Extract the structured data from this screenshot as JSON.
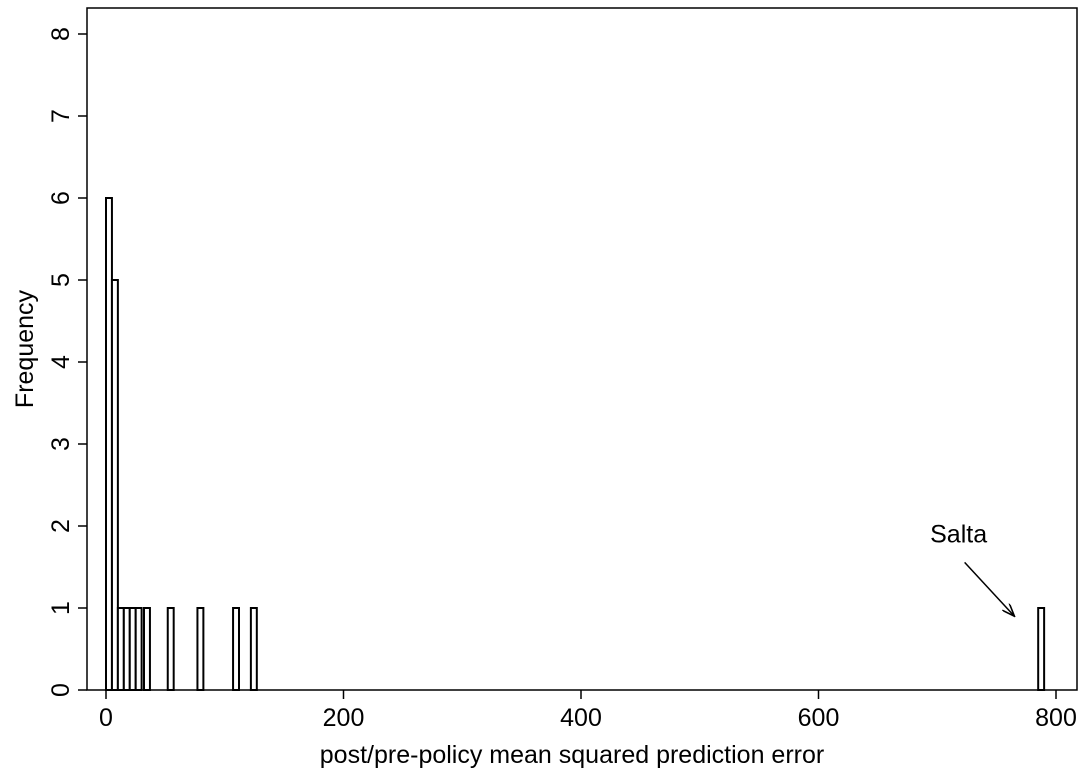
{
  "chart_data": {
    "type": "bar",
    "title": "",
    "xlabel": "post/pre-policy mean squared prediction error",
    "ylabel": "Frequency",
    "xlim": [
      -15,
      800
    ],
    "ylim": [
      0,
      8.3
    ],
    "xticks": [
      0,
      200,
      400,
      600,
      800
    ],
    "yticks": [
      0,
      1,
      2,
      3,
      4,
      5,
      6,
      7,
      8
    ],
    "grid": false,
    "legend": "none",
    "bin_width": 5,
    "bins": [
      {
        "start": 0,
        "end": 5,
        "count": 6
      },
      {
        "start": 5,
        "end": 10,
        "count": 5
      },
      {
        "start": 10,
        "end": 15,
        "count": 1
      },
      {
        "start": 15,
        "end": 20,
        "count": 1
      },
      {
        "start": 20,
        "end": 25,
        "count": 1
      },
      {
        "start": 25,
        "end": 30,
        "count": 1
      },
      {
        "start": 32,
        "end": 37,
        "count": 1
      },
      {
        "start": 52,
        "end": 57,
        "count": 1
      },
      {
        "start": 77,
        "end": 82,
        "count": 1
      },
      {
        "start": 107,
        "end": 112,
        "count": 1
      },
      {
        "start": 122,
        "end": 127,
        "count": 1
      },
      {
        "start": 785,
        "end": 790,
        "count": 1
      }
    ],
    "annotations": [
      {
        "text": "Salta",
        "arrow_to": {
          "x": 765,
          "y": 0.9
        },
        "text_at": {
          "x": 718,
          "y": 1.8
        }
      }
    ],
    "colors": {
      "bar_fill": "#ffffff",
      "bar_stroke": "#000000",
      "axis": "#000000"
    }
  }
}
